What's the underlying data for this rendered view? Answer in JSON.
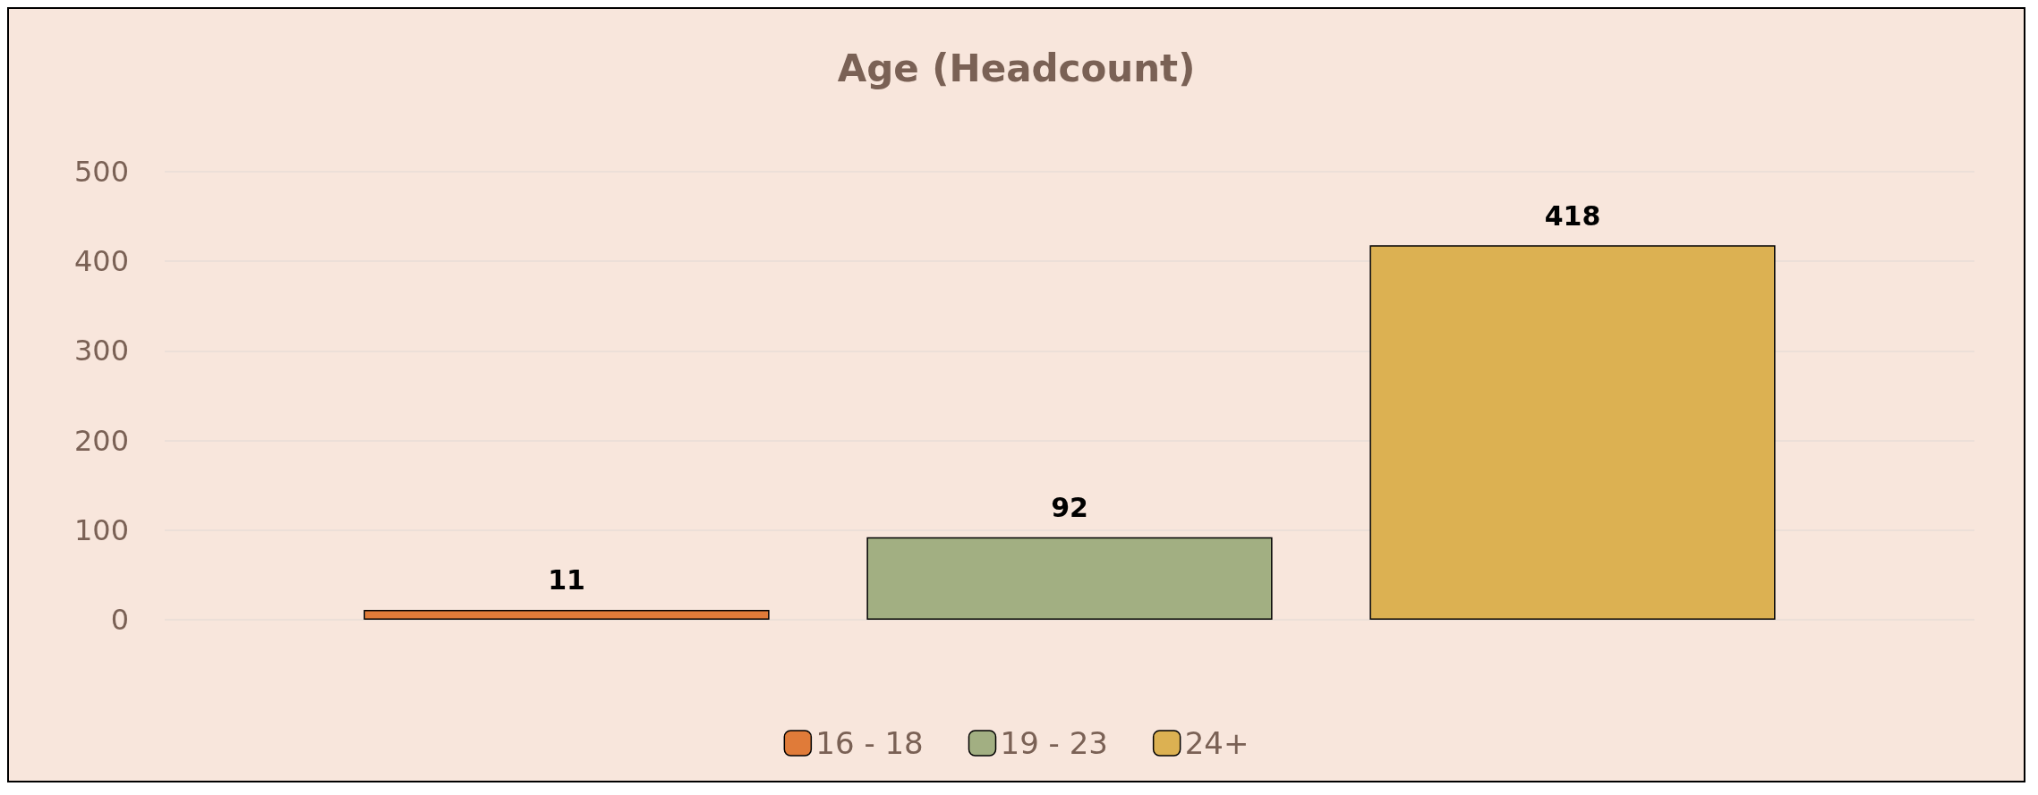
{
  "chart_data": {
    "type": "bar",
    "title": "Age (Headcount)",
    "categories": [
      null
    ],
    "series": [
      {
        "name": "16 - 18",
        "color": "#e07b39",
        "values": [
          11
        ]
      },
      {
        "name": "19 - 23",
        "color": "#a2af82",
        "values": [
          92
        ]
      },
      {
        "name": "24+",
        "color": "#dcb152",
        "values": [
          418
        ]
      }
    ],
    "ylim": [
      0,
      500
    ],
    "yticks": [
      0,
      100,
      200,
      300,
      400,
      500
    ],
    "grid": "y",
    "legend": "bottom",
    "data_labels": true
  }
}
